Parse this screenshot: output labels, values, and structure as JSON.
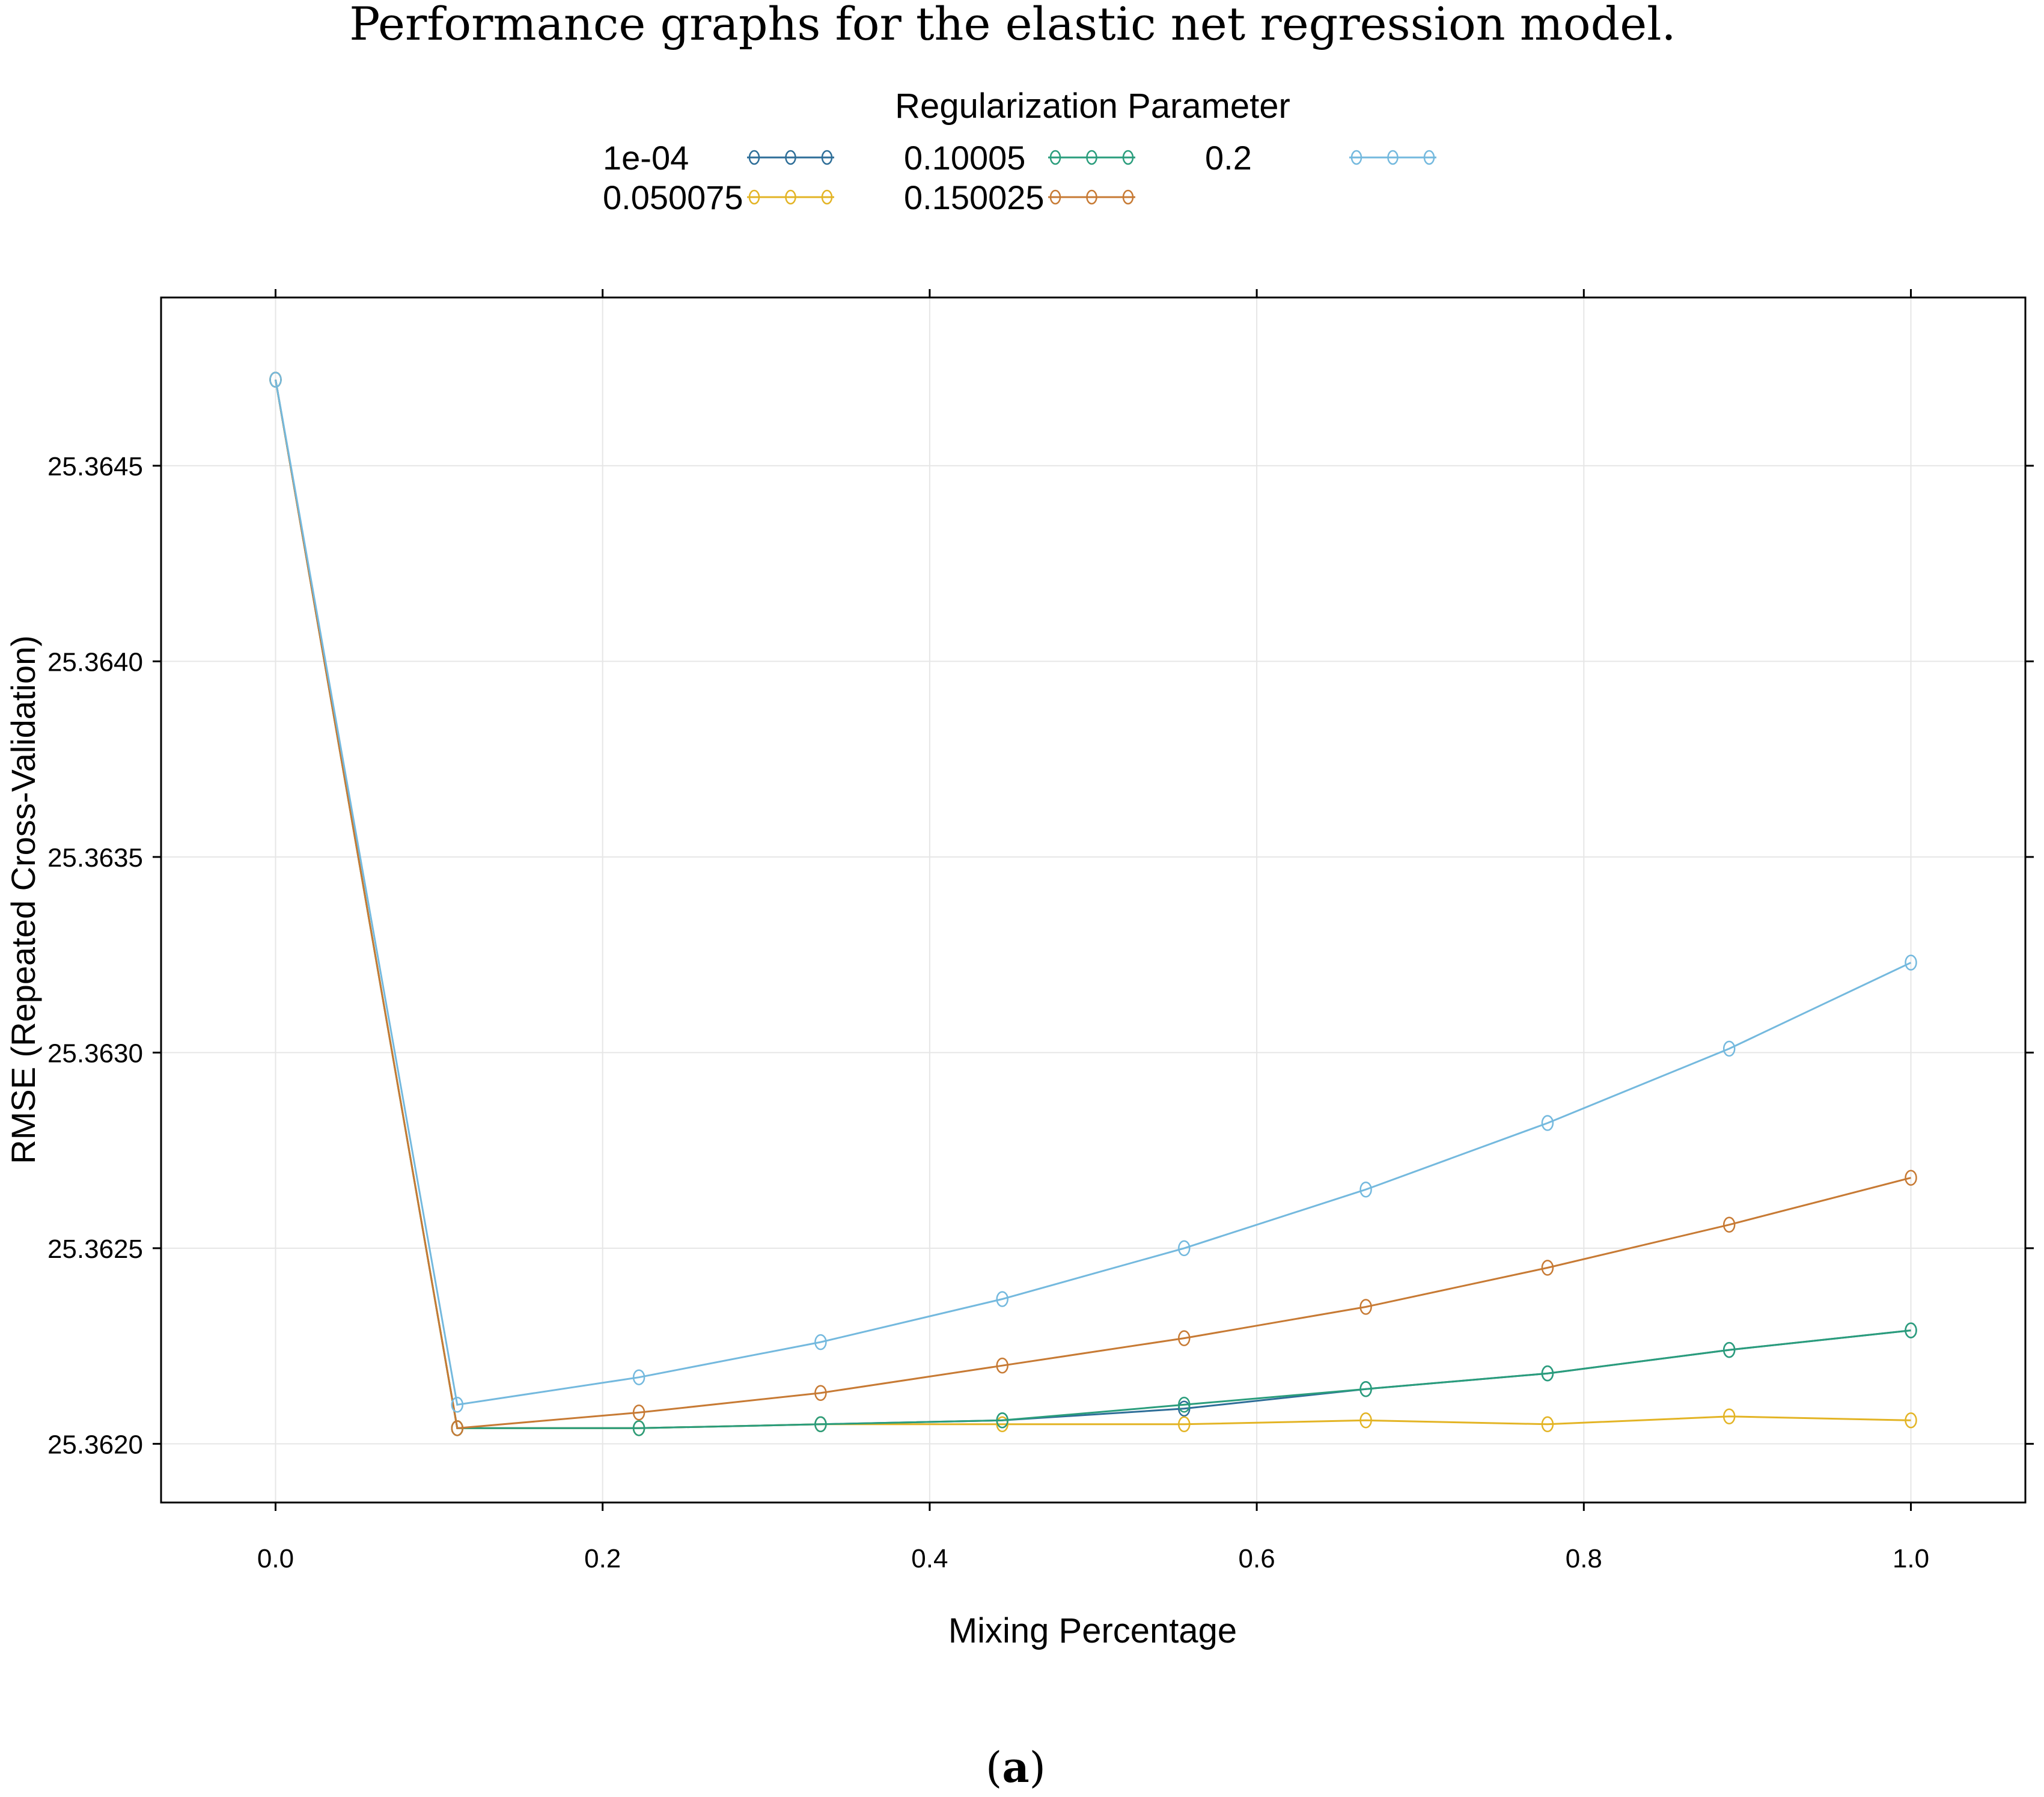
{
  "caption": "Performance graphs for the elastic net regression model.",
  "subfigure_label": {
    "open": "(",
    "letter": "a",
    "close": ")"
  },
  "chart_data": {
    "type": "line",
    "title": "",
    "legend_title": "Regularization Parameter",
    "legend_position": "top",
    "xlabel": "Mixing Percentage",
    "ylabel": "RMSE (Repeated Cross-Validation)",
    "xlim": [
      -0.07,
      1.07
    ],
    "ylim": [
      25.36185,
      25.36493
    ],
    "xticks": [
      0.0,
      0.2,
      0.4,
      0.6,
      0.8,
      1.0
    ],
    "xtick_labels": [
      "0.0",
      "0.2",
      "0.4",
      "0.6",
      "0.8",
      "1.0"
    ],
    "yticks": [
      25.362,
      25.3625,
      25.363,
      25.3635,
      25.364,
      25.3645
    ],
    "ytick_labels": [
      "25.3620",
      "25.3625",
      "25.3630",
      "25.3635",
      "25.3640",
      "25.3645"
    ],
    "grid": true,
    "marker": "circle",
    "x": [
      0.0,
      0.1111,
      0.2222,
      0.3333,
      0.4444,
      0.5556,
      0.6667,
      0.7778,
      0.8889,
      1.0
    ],
    "series": [
      {
        "name": "1e-04",
        "color": "#2E6E98",
        "values": [
          25.36472,
          25.36204,
          25.36204,
          25.36205,
          25.36206,
          25.36209,
          25.36214,
          25.36218,
          25.36224,
          25.36229
        ]
      },
      {
        "name": "0.050075",
        "color": "#E3B425",
        "values": [
          25.36472,
          25.36204,
          25.36204,
          25.36205,
          25.36205,
          25.36205,
          25.36206,
          25.36205,
          25.36207,
          25.36206
        ]
      },
      {
        "name": "0.10005",
        "color": "#2A9D7C",
        "values": [
          25.36472,
          25.36204,
          25.36204,
          25.36205,
          25.36206,
          25.3621,
          25.36214,
          25.36218,
          25.36224,
          25.36229
        ]
      },
      {
        "name": "0.150025",
        "color": "#C77A34",
        "values": [
          25.36472,
          25.36204,
          25.36208,
          25.36213,
          25.3622,
          25.36227,
          25.36235,
          25.36245,
          25.36256,
          25.36268
        ]
      },
      {
        "name": "0.2",
        "color": "#74B9DE",
        "values": [
          25.36472,
          25.3621,
          25.36217,
          25.36226,
          25.36237,
          25.3625,
          25.36265,
          25.36282,
          25.36301,
          25.36323
        ]
      }
    ]
  }
}
